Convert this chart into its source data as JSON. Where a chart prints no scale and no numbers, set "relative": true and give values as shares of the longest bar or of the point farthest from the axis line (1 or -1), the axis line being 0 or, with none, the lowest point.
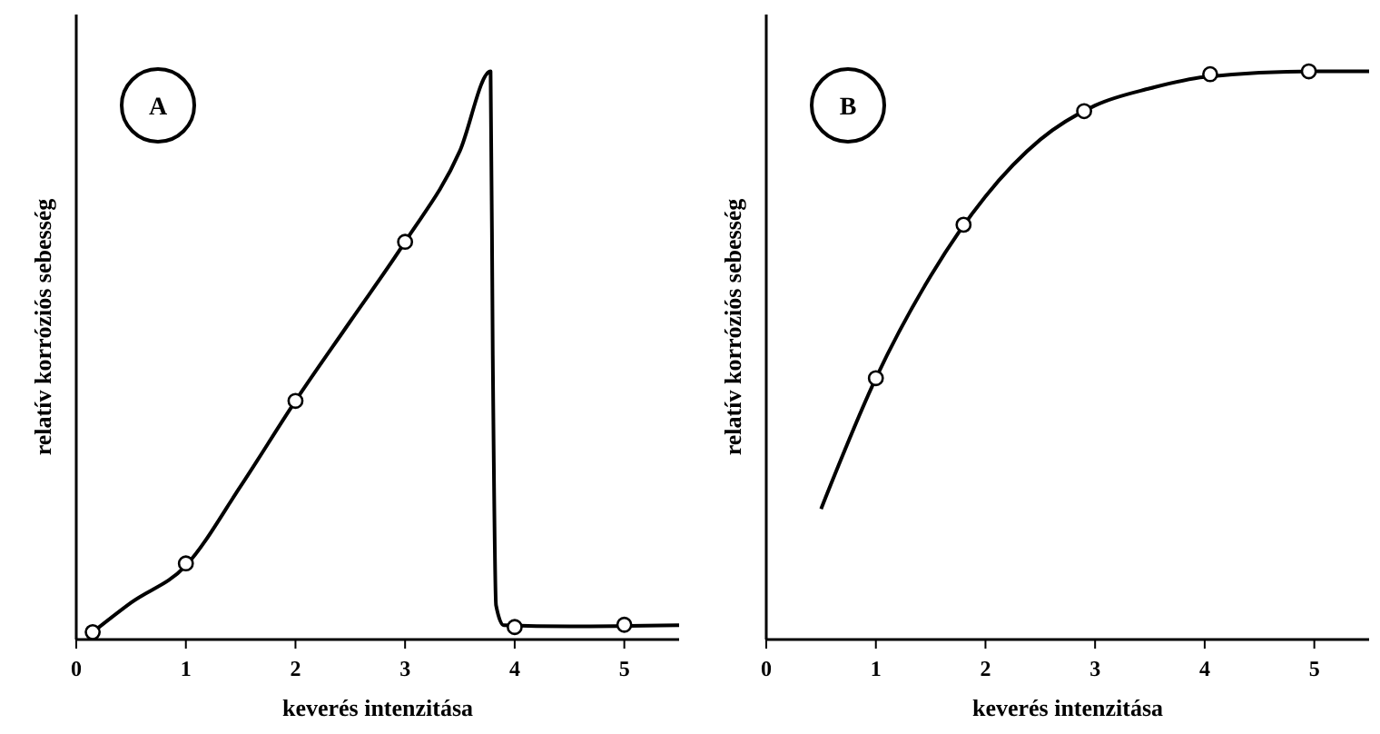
{
  "chart_data": [
    {
      "type": "line",
      "relative": true,
      "xlabel": "keverés intenzitása",
      "ylabel": "relatív korróziós sebesség",
      "annotations": [
        "A"
      ],
      "xlim": [
        0,
        5.5
      ],
      "xticks": [
        0,
        1,
        2,
        3,
        4,
        5
      ],
      "tick_labels": "x",
      "grid": false,
      "series": [
        {
          "color": "#000000",
          "marker": "none",
          "line_style": "solid",
          "x": [
            0.15,
            0.5,
            1,
            1.5,
            2,
            2.5,
            3,
            3.5,
            3.78,
            3.8,
            3.83,
            3.9,
            4.5,
            5.5
          ],
          "values": [
            0.013,
            0.065,
            0.13,
            0.27,
            0.42,
            0.56,
            0.7,
            0.86,
            1.0,
            0.5,
            0.06,
            0.025,
            0.023,
            0.025
          ]
        },
        {
          "type": "scatter",
          "color": "#000000",
          "marker": "circle",
          "x": [
            0.15,
            1,
            2,
            3,
            4,
            5
          ],
          "values": [
            0.013,
            0.134,
            0.42,
            0.7,
            0.022,
            0.026
          ]
        }
      ]
    },
    {
      "type": "line",
      "relative": true,
      "xlabel": "keverés intenzitása",
      "ylabel": "relatív korróziós sebesség",
      "annotations": [
        "B"
      ],
      "xlim": [
        0,
        5.5
      ],
      "xticks": [
        0,
        1,
        2,
        3,
        4,
        5
      ],
      "tick_labels": "x",
      "grid": false,
      "series": [
        {
          "color": "#000000",
          "marker": "none",
          "line_style": "solid",
          "x": [
            0.5,
            1,
            1.5,
            2,
            2.5,
            3,
            3.5,
            4,
            5,
            5.5
          ],
          "values": [
            0.23,
            0.46,
            0.64,
            0.78,
            0.88,
            0.94,
            0.97,
            0.99,
            1.0,
            1.0
          ]
        },
        {
          "type": "scatter",
          "color": "#000000",
          "marker": "circle",
          "x": [
            1,
            1.8,
            2.9,
            4.05,
            4.95
          ],
          "values": [
            0.46,
            0.73,
            0.93,
            0.995,
            1.0
          ]
        }
      ]
    }
  ]
}
